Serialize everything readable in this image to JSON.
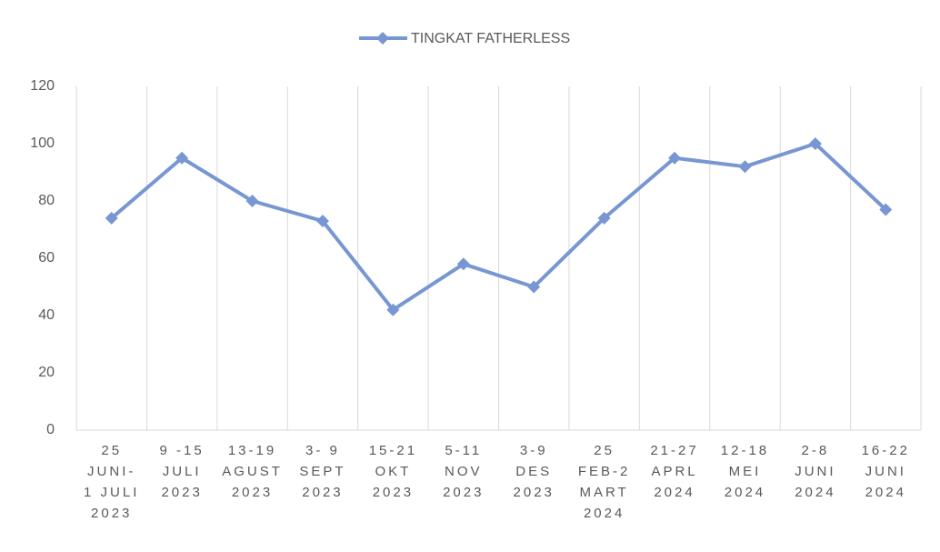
{
  "chart_data": {
    "type": "line",
    "categories": [
      "25\nJUNI-\n1 JULI\n2023",
      "9 -15\nJULI\n2023",
      "13-19\nAGUST\n2023",
      "3- 9\nSEPT\n2023",
      "15-21\nOKT\n2023",
      "5-11\nNOV\n2023",
      "3-9\nDES\n2023",
      "25\nFEB-2\nMART\n2024",
      "21-27\nAPRL\n2024",
      "12-18\nMEI\n2024",
      "2-8\nJUNI\n2024",
      "16-22\nJUNI\n2024"
    ],
    "series": [
      {
        "name": "TINGKAT FATHERLESS",
        "color": "#7896d2",
        "values": [
          74,
          95,
          80,
          73,
          42,
          58,
          50,
          74,
          95,
          92,
          100,
          77
        ]
      }
    ],
    "ylim": [
      0,
      120
    ],
    "yticks": [
      0,
      20,
      40,
      60,
      80,
      100,
      120
    ],
    "legend": "top"
  }
}
